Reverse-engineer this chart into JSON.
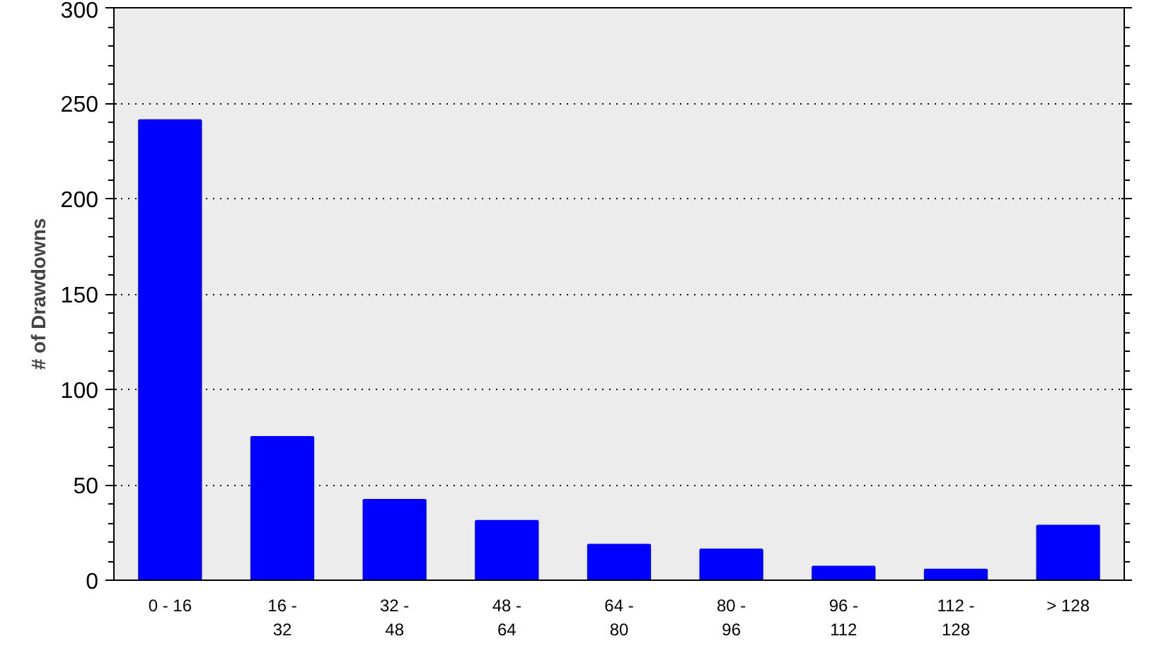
{
  "chart_data": {
    "type": "bar",
    "ylabel": "# of Drawdowns",
    "categories": [
      "0 - 16",
      "16 - 32",
      "32 - 48",
      "48 - 64",
      "64 - 80",
      "80 - 96",
      "96 - 112",
      "112 - 128",
      "> 128"
    ],
    "values": [
      241,
      75,
      42,
      31,
      18.5,
      16,
      7,
      5.5,
      28.5
    ],
    "color": "#0000ff",
    "ylim": [
      0,
      300
    ],
    "yticks": [
      0,
      50,
      100,
      150,
      200,
      250,
      300
    ],
    "grid": "y"
  }
}
